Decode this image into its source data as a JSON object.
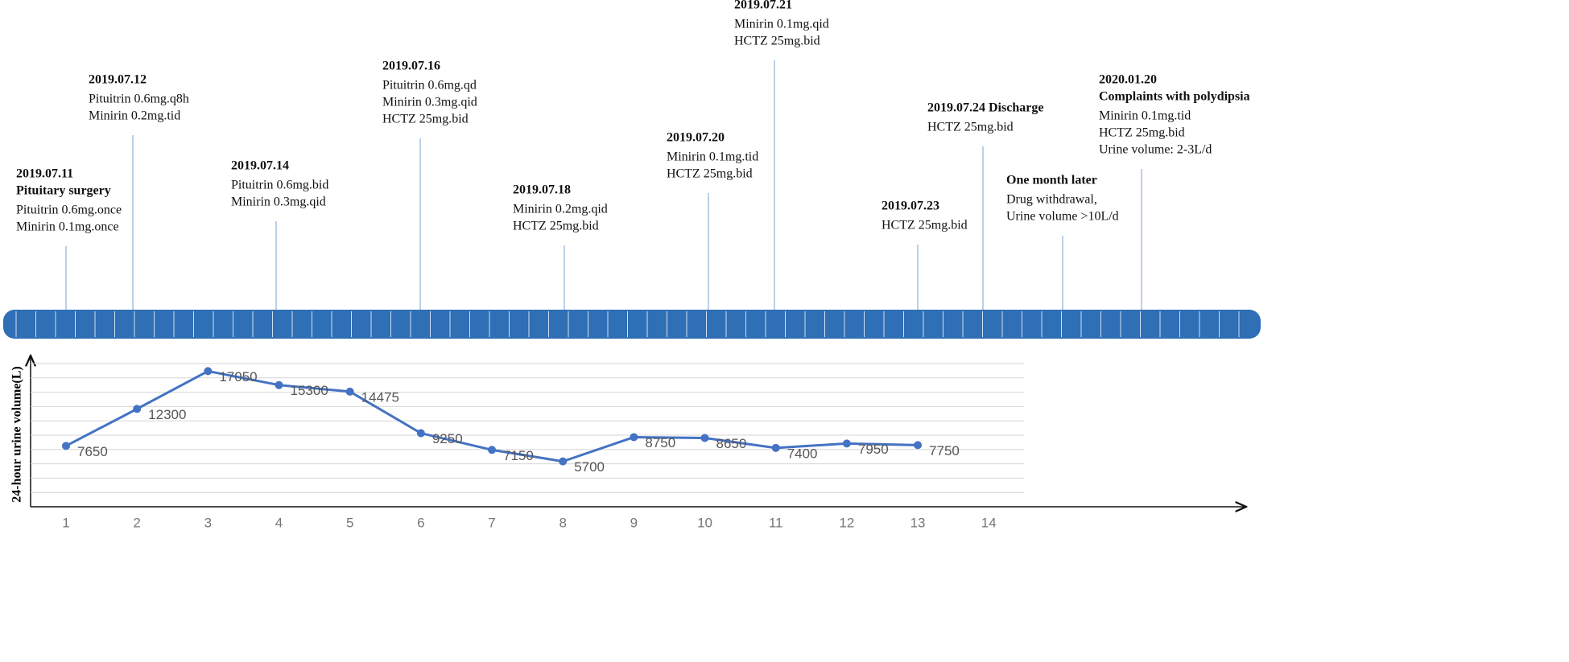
{
  "timeline": {
    "events": [
      {
        "heading": [
          "2019.07.11",
          "Pituitary surgery"
        ],
        "details": [
          "Pituitrin 0.6mg.once",
          "Minirin 0.1mg.once"
        ]
      },
      {
        "heading": [
          "2019.07.12"
        ],
        "details": [
          "Pituitrin 0.6mg.q8h",
          "Minirin 0.2mg.tid"
        ]
      },
      {
        "heading": [
          "2019.07.14"
        ],
        "details": [
          "Pituitrin 0.6mg.bid",
          "Minirin 0.3mg.qid"
        ]
      },
      {
        "heading": [
          "2019.07.16"
        ],
        "details": [
          "Pituitrin 0.6mg.qd",
          "Minirin 0.3mg.qid",
          "HCTZ 25mg.bid"
        ]
      },
      {
        "heading": [
          "2019.07.18"
        ],
        "details": [
          "Minirin 0.2mg.qid",
          "HCTZ 25mg.bid"
        ]
      },
      {
        "heading": [
          "2019.07.20"
        ],
        "details": [
          "Minirin 0.1mg.tid",
          "HCTZ 25mg.bid"
        ]
      },
      {
        "heading": [
          "2019.07.21"
        ],
        "details": [
          "Minirin 0.1mg.qid",
          "HCTZ 25mg.bid"
        ]
      },
      {
        "heading": [
          "2019.07.23"
        ],
        "details": [
          "HCTZ 25mg.bid"
        ]
      },
      {
        "heading": [
          "2019.07.24 Discharge"
        ],
        "details": [
          "HCTZ 25mg.bid"
        ]
      },
      {
        "heading": [
          "One month later"
        ],
        "details": [
          "Drug withdrawal,",
          "Urine volume >10L/d"
        ]
      },
      {
        "heading": [
          "2020.01.20",
          "Complaints with polydipsia"
        ],
        "details": [
          "Minirin 0.1mg.tid",
          "HCTZ 25mg.bid",
          "Urine volume: 2-3L/d"
        ]
      }
    ]
  },
  "chart_data": {
    "type": "line",
    "y_label": "24-hour urine volume(L)",
    "categories": [
      "1",
      "2",
      "3",
      "4",
      "5",
      "6",
      "7",
      "8",
      "9",
      "10",
      "11",
      "12",
      "13",
      "14"
    ],
    "values": [
      7650,
      12300,
      17050,
      15300,
      14475,
      9250,
      7150,
      5700,
      8750,
      8650,
      7400,
      7950,
      7750,
      null
    ],
    "color": "#4472c4",
    "ylim": [
      0,
      18000
    ],
    "yticks": [
      1800,
      3600,
      5400,
      7200,
      9000,
      10800,
      12600,
      14400,
      16200,
      18000
    ],
    "grid": true
  }
}
